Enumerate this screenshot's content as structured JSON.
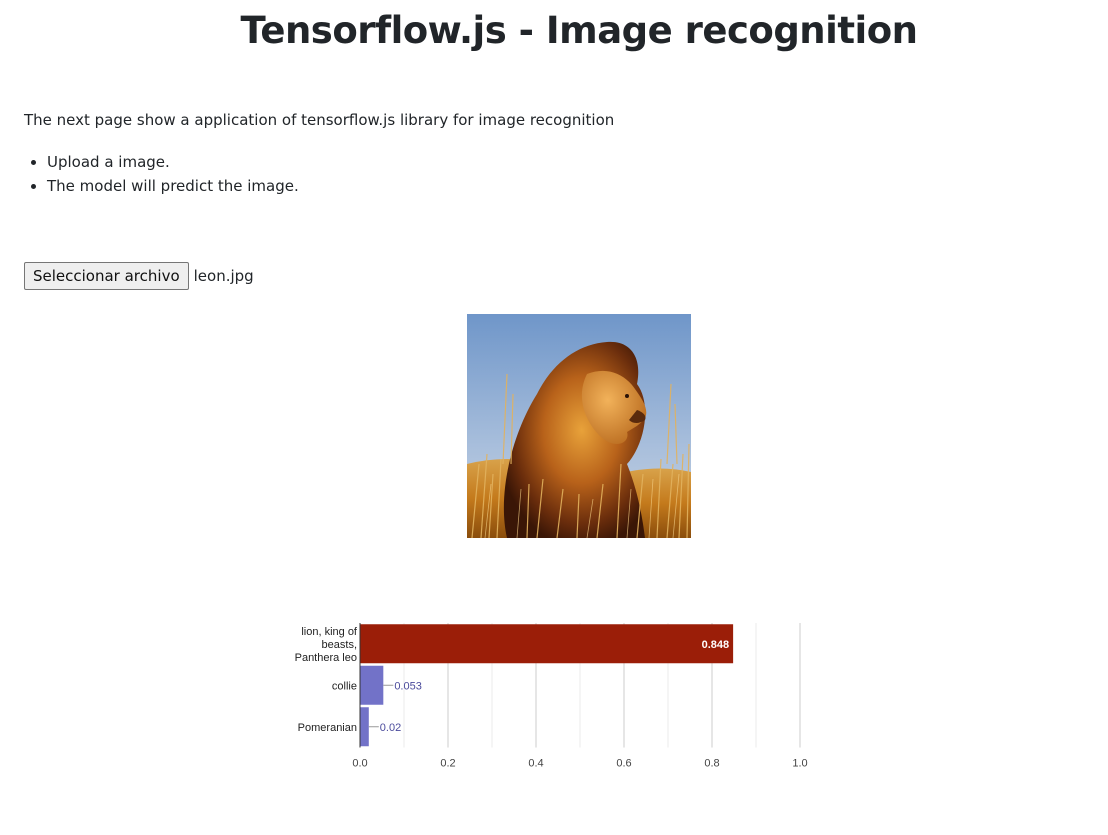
{
  "page": {
    "title": "Tensorflow.js - Image recognition",
    "intro": "The next page show a application of tensorflow.js library for image recognition",
    "steps": [
      "Upload a image.",
      "The model will predict the image."
    ]
  },
  "file_input": {
    "button_label": "Seleccionar archivo",
    "file_name": "leon.jpg"
  },
  "image": {
    "subject": "lion-photo"
  },
  "colors": {
    "top_bar": "#9b1e08",
    "other_bar": "#7272c8",
    "text": "#212529"
  },
  "chart_data": {
    "type": "bar",
    "orientation": "horizontal",
    "categories": [
      [
        "lion, king of",
        "beasts,",
        "Panthera leo"
      ],
      [
        "collie"
      ],
      [
        "Pomeranian"
      ]
    ],
    "values": [
      0.848,
      0.053,
      0.02
    ],
    "value_labels": [
      "0.848",
      "0.053",
      "0.02"
    ],
    "xlim": [
      0.0,
      1.0
    ],
    "xticks": [
      "0.0",
      "0.2",
      "0.4",
      "0.6",
      "0.8",
      "1.0"
    ],
    "grid": true,
    "legend": "none",
    "title": "",
    "xlabel": "",
    "ylabel": ""
  }
}
